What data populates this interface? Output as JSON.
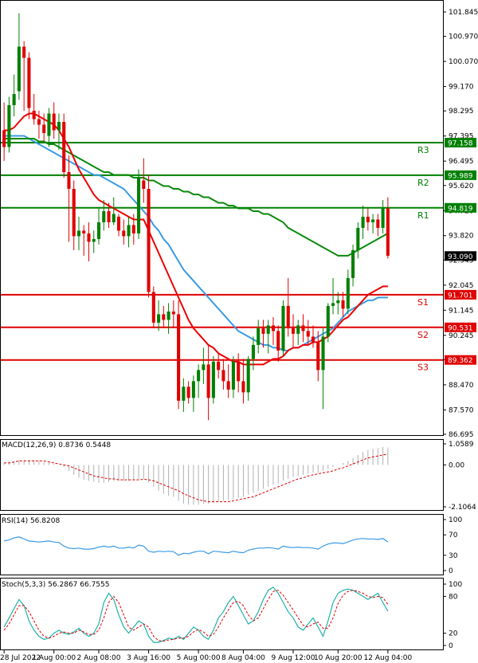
{
  "chart_data": {
    "type": "candlestick",
    "price_panel": {
      "y_ticks": [
        "101.845",
        "100.970",
        "100.070",
        "99.170",
        "98.295",
        "97.395",
        "96.495",
        "95.620",
        "94.720",
        "93.820",
        "92.945",
        "92.045",
        "91.145",
        "90.245",
        "89.370",
        "88.470",
        "87.570",
        "86.695"
      ],
      "ylim": [
        86.695,
        101.845
      ],
      "levels": [
        {
          "label": "R3",
          "value": 97.158,
          "value_text": "97.158",
          "color": "#008000"
        },
        {
          "label": "R2",
          "value": 95.989,
          "value_text": "95.989",
          "color": "#008000"
        },
        {
          "label": "R1",
          "value": 94.819,
          "value_text": "94.819",
          "color": "#008000"
        },
        {
          "label": "S1",
          "value": 91.701,
          "value_text": "91.701",
          "color": "#e00000"
        },
        {
          "label": "S2",
          "value": 90.531,
          "value_text": "90.531",
          "color": "#e00000"
        },
        {
          "label": "S3",
          "value": 89.362,
          "value_text": "89.362",
          "color": "#e00000"
        }
      ],
      "current_price": 93.09,
      "current_price_text": "93.090",
      "bull_color": "#008000",
      "bear_color": "#e00000",
      "candles": [
        [
          97.6,
          98.6,
          96.5,
          97.0
        ],
        [
          97.0,
          98.8,
          96.8,
          98.5
        ],
        [
          98.5,
          99.6,
          98.1,
          98.9
        ],
        [
          99.0,
          101.8,
          98.7,
          100.6
        ],
        [
          100.6,
          100.8,
          98.3,
          100.2
        ],
        [
          100.2,
          100.4,
          98.0,
          98.4
        ],
        [
          98.3,
          98.9,
          97.8,
          98.0
        ],
        [
          98.0,
          98.3,
          97.3,
          97.8
        ],
        [
          97.8,
          98.2,
          97.2,
          97.5
        ],
        [
          97.4,
          98.4,
          97.0,
          98.2
        ],
        [
          98.2,
          98.6,
          97.3,
          97.6
        ],
        [
          97.6,
          98.2,
          96.9,
          97.9
        ],
        [
          97.9,
          98.2,
          95.9,
          96.1
        ],
        [
          96.1,
          96.7,
          93.6,
          95.5
        ],
        [
          95.5,
          95.8,
          93.3,
          93.8
        ],
        [
          93.8,
          94.5,
          93.3,
          94.0
        ],
        [
          94.0,
          94.2,
          93.1,
          93.9
        ],
        [
          93.9,
          94.3,
          92.9,
          93.6
        ],
        [
          93.6,
          94.0,
          93.2,
          93.7
        ],
        [
          93.7,
          94.8,
          93.5,
          94.3
        ],
        [
          94.3,
          95.1,
          94.0,
          94.7
        ],
        [
          94.7,
          95.0,
          94.1,
          94.3
        ],
        [
          94.3,
          95.2,
          94.2,
          94.6
        ],
        [
          94.5,
          94.6,
          93.8,
          94.0
        ],
        [
          94.0,
          94.4,
          93.5,
          93.8
        ],
        [
          93.8,
          94.5,
          93.4,
          94.2
        ],
        [
          94.2,
          94.6,
          93.5,
          93.9
        ],
        [
          93.9,
          96.2,
          93.7,
          95.9
        ],
        [
          95.8,
          96.6,
          95.0,
          95.5
        ],
        [
          95.5,
          96.0,
          91.6,
          91.8
        ],
        [
          91.8,
          92.0,
          90.5,
          90.7
        ],
        [
          90.7,
          91.5,
          90.4,
          91.0
        ],
        [
          91.0,
          91.3,
          90.5,
          90.8
        ],
        [
          90.8,
          91.4,
          90.3,
          91.1
        ],
        [
          91.1,
          91.5,
          90.5,
          91.0
        ],
        [
          91.0,
          91.5,
          87.6,
          87.9
        ],
        [
          87.9,
          88.7,
          87.5,
          88.4
        ],
        [
          88.4,
          88.6,
          87.8,
          88.0
        ],
        [
          88.0,
          88.8,
          87.5,
          88.6
        ],
        [
          88.6,
          89.2,
          88.0,
          89.0
        ],
        [
          89.0,
          89.8,
          88.5,
          89.2
        ],
        [
          89.2,
          89.9,
          87.2,
          88.0
        ],
        [
          88.0,
          89.5,
          87.8,
          89.3
        ],
        [
          89.3,
          89.6,
          88.7,
          89.0
        ],
        [
          89.0,
          89.4,
          88.3,
          88.6
        ],
        [
          88.6,
          89.2,
          88.0,
          88.3
        ],
        [
          88.3,
          89.5,
          88.0,
          89.3
        ],
        [
          89.3,
          89.6,
          88.2,
          88.6
        ],
        [
          88.6,
          89.4,
          87.8,
          88.2
        ],
        [
          88.2,
          89.5,
          87.9,
          89.4
        ],
        [
          89.4,
          90.2,
          89.0,
          89.9
        ],
        [
          89.9,
          90.8,
          89.6,
          90.5
        ],
        [
          90.5,
          90.8,
          89.8,
          90.3
        ],
        [
          90.3,
          90.8,
          89.6,
          90.6
        ],
        [
          90.6,
          90.9,
          89.9,
          90.4
        ],
        [
          90.4,
          90.6,
          89.3,
          89.7
        ],
        [
          89.7,
          91.5,
          89.5,
          91.3
        ],
        [
          91.3,
          92.3,
          90.2,
          90.5
        ],
        [
          90.5,
          91.0,
          89.8,
          90.3
        ],
        [
          90.3,
          90.8,
          89.9,
          90.6
        ],
        [
          90.6,
          91.0,
          90.0,
          90.4
        ],
        [
          90.4,
          90.8,
          89.9,
          90.2
        ],
        [
          90.2,
          90.6,
          89.8,
          90.0
        ],
        [
          90.0,
          90.4,
          88.6,
          89.0
        ],
        [
          89.0,
          90.5,
          87.6,
          90.2
        ],
        [
          90.2,
          91.4,
          90.0,
          91.3
        ],
        [
          91.3,
          92.3,
          91.0,
          91.4
        ],
        [
          91.4,
          91.8,
          91.0,
          91.5
        ],
        [
          91.5,
          91.8,
          90.9,
          91.2
        ],
        [
          91.2,
          92.6,
          91.0,
          92.3
        ],
        [
          92.3,
          93.5,
          92.0,
          93.3
        ],
        [
          93.3,
          94.3,
          93.0,
          94.1
        ],
        [
          94.1,
          94.9,
          93.7,
          94.5
        ],
        [
          94.5,
          94.8,
          94.0,
          94.3
        ],
        [
          94.3,
          94.6,
          93.9,
          94.4
        ],
        [
          94.4,
          94.6,
          93.8,
          94.1
        ],
        [
          94.1,
          95.1,
          93.9,
          94.8
        ],
        [
          94.8,
          95.2,
          93.0,
          93.1
        ]
      ],
      "ma_red": [
        97.6,
        97.6,
        97.7,
        97.9,
        98.1,
        98.2,
        98.2,
        98.1,
        98.0,
        97.9,
        97.8,
        97.6,
        97.3,
        97.0,
        96.6,
        96.2,
        95.9,
        95.6,
        95.3,
        95.1,
        95.0,
        94.9,
        94.8,
        94.7,
        94.6,
        94.5,
        94.4,
        94.4,
        94.4,
        94.0,
        93.6,
        93.2,
        92.8,
        92.4,
        92.0,
        91.6,
        91.2,
        90.8,
        90.5,
        90.3,
        90.1,
        89.9,
        89.8,
        89.6,
        89.5,
        89.4,
        89.3,
        89.3,
        89.2,
        89.2,
        89.2,
        89.2,
        89.2,
        89.3,
        89.4,
        89.4,
        89.5,
        89.7,
        89.8,
        89.8,
        89.9,
        89.9,
        90.0,
        90.0,
        90.1,
        90.2,
        90.4,
        90.6,
        90.8,
        90.9,
        91.1,
        91.3,
        91.5,
        91.7,
        91.8,
        91.9,
        92.0,
        92.0
      ],
      "ma_green": [
        97.3,
        97.3,
        97.3,
        97.3,
        97.3,
        97.3,
        97.3,
        97.2,
        97.2,
        97.1,
        97.1,
        97.0,
        96.9,
        96.8,
        96.7,
        96.6,
        96.5,
        96.4,
        96.3,
        96.2,
        96.1,
        96.1,
        96.0,
        96.0,
        96.0,
        96.0,
        95.9,
        95.9,
        95.9,
        95.8,
        95.8,
        95.7,
        95.6,
        95.6,
        95.5,
        95.5,
        95.4,
        95.4,
        95.3,
        95.3,
        95.2,
        95.2,
        95.1,
        95.0,
        95.0,
        94.9,
        94.9,
        94.8,
        94.8,
        94.8,
        94.7,
        94.7,
        94.6,
        94.6,
        94.5,
        94.4,
        94.3,
        94.1,
        94.0,
        93.9,
        93.8,
        93.7,
        93.6,
        93.5,
        93.4,
        93.3,
        93.2,
        93.1,
        93.1,
        93.1,
        93.2,
        93.3,
        93.4,
        93.5,
        93.6,
        93.7,
        93.8,
        93.9
      ],
      "ma_blue": [
        97.4,
        97.4,
        97.4,
        97.4,
        97.4,
        97.3,
        97.2,
        97.1,
        97.0,
        96.9,
        96.8,
        96.7,
        96.6,
        96.5,
        96.4,
        96.3,
        96.2,
        96.1,
        96.0,
        96.0,
        95.9,
        95.8,
        95.7,
        95.6,
        95.5,
        95.3,
        95.1,
        94.9,
        94.7,
        94.5,
        94.2,
        94.0,
        93.7,
        93.5,
        93.2,
        92.9,
        92.6,
        92.4,
        92.2,
        92.0,
        91.8,
        91.6,
        91.4,
        91.2,
        91.0,
        90.8,
        90.6,
        90.4,
        90.3,
        90.2,
        90.1,
        90.0,
        89.9,
        89.9,
        89.8,
        89.8,
        89.7,
        89.7,
        89.8,
        89.8,
        89.9,
        90.0,
        90.1,
        90.2,
        90.3,
        90.4,
        90.5,
        90.7,
        90.9,
        91.1,
        91.2,
        91.3,
        91.4,
        91.5,
        91.5,
        91.6,
        91.6,
        91.6
      ]
    },
    "macd_panel": {
      "label": "MACD(12,26,9) 0.8736 0.5448",
      "y_ticks": [
        "1.0589",
        "0.00",
        "-2.1064"
      ],
      "ylim": [
        -2.1064,
        1.0589
      ],
      "histogram": [
        0.1,
        0.15,
        0.2,
        0.25,
        0.25,
        0.25,
        0.25,
        0.2,
        0.15,
        0.1,
        0.05,
        0.0,
        -0.1,
        -0.3,
        -0.5,
        -0.65,
        -0.75,
        -0.8,
        -0.85,
        -0.9,
        -0.9,
        -0.85,
        -0.8,
        -0.8,
        -0.8,
        -0.8,
        -0.75,
        -0.7,
        -0.7,
        -0.9,
        -1.1,
        -1.3,
        -1.45,
        -1.55,
        -1.6,
        -1.8,
        -1.95,
        -2.0,
        -2.0,
        -2.0,
        -1.95,
        -1.95,
        -1.9,
        -1.85,
        -1.8,
        -1.75,
        -1.7,
        -1.65,
        -1.6,
        -1.5,
        -1.4,
        -1.3,
        -1.2,
        -1.1,
        -1.0,
        -0.95,
        -0.8,
        -0.7,
        -0.6,
        -0.55,
        -0.5,
        -0.45,
        -0.4,
        -0.4,
        -0.3,
        -0.2,
        -0.1,
        0.0,
        0.1,
        0.2,
        0.35,
        0.5,
        0.65,
        0.75,
        0.8,
        0.85,
        0.9,
        0.87
      ],
      "signal": [
        0.1,
        0.1,
        0.15,
        0.2,
        0.2,
        0.2,
        0.2,
        0.2,
        0.2,
        0.15,
        0.1,
        0.05,
        0.0,
        -0.05,
        -0.15,
        -0.25,
        -0.35,
        -0.45,
        -0.55,
        -0.6,
        -0.65,
        -0.7,
        -0.7,
        -0.75,
        -0.75,
        -0.75,
        -0.75,
        -0.75,
        -0.72,
        -0.75,
        -0.8,
        -0.9,
        -1.0,
        -1.1,
        -1.2,
        -1.3,
        -1.45,
        -1.55,
        -1.65,
        -1.75,
        -1.8,
        -1.85,
        -1.85,
        -1.85,
        -1.85,
        -1.85,
        -1.8,
        -1.75,
        -1.7,
        -1.65,
        -1.6,
        -1.5,
        -1.4,
        -1.3,
        -1.2,
        -1.1,
        -1.0,
        -0.9,
        -0.8,
        -0.7,
        -0.65,
        -0.55,
        -0.5,
        -0.45,
        -0.4,
        -0.35,
        -0.3,
        -0.2,
        -0.15,
        -0.05,
        0.05,
        0.15,
        0.25,
        0.35,
        0.4,
        0.45,
        0.5,
        0.55
      ]
    },
    "rsi_panel": {
      "label": "RSI(14) 56.8208",
      "y_ticks": [
        "100",
        "70",
        "30",
        "0"
      ],
      "ylim": [
        0,
        100
      ],
      "values": [
        58,
        60,
        64,
        66,
        62,
        58,
        57,
        56,
        57,
        58,
        56,
        55,
        48,
        44,
        43,
        44,
        42,
        42,
        43,
        46,
        48,
        46,
        48,
        44,
        44,
        46,
        44,
        50,
        48,
        38,
        36,
        38,
        37,
        38,
        37,
        30,
        34,
        33,
        36,
        38,
        38,
        33,
        38,
        37,
        36,
        35,
        38,
        36,
        35,
        40,
        42,
        44,
        44,
        45,
        44,
        42,
        48,
        46,
        45,
        46,
        45,
        45,
        44,
        42,
        48,
        52,
        54,
        54,
        53,
        56,
        60,
        62,
        63,
        62,
        62,
        61,
        63,
        56
      ]
    },
    "stoch_panel": {
      "label": "Stoch(5,3,3) 56.2867 66.7555",
      "y_ticks": [
        "100",
        "80",
        "20",
        "0"
      ],
      "ylim": [
        0,
        100
      ],
      "k": [
        30,
        45,
        60,
        75,
        65,
        40,
        25,
        15,
        10,
        12,
        20,
        25,
        20,
        18,
        22,
        28,
        20,
        15,
        20,
        35,
        70,
        85,
        75,
        50,
        30,
        20,
        30,
        40,
        35,
        15,
        5,
        5,
        8,
        12,
        10,
        15,
        10,
        20,
        30,
        25,
        15,
        10,
        25,
        45,
        55,
        70,
        80,
        65,
        50,
        35,
        40,
        55,
        75,
        90,
        95,
        85,
        70,
        55,
        45,
        30,
        25,
        35,
        45,
        30,
        15,
        40,
        70,
        85,
        90,
        92,
        90,
        85,
        80,
        75,
        80,
        85,
        70,
        56
      ],
      "d": [
        25,
        35,
        50,
        65,
        65,
        55,
        40,
        25,
        15,
        12,
        15,
        20,
        22,
        20,
        20,
        25,
        22,
        18,
        18,
        25,
        45,
        70,
        80,
        70,
        50,
        30,
        25,
        30,
        35,
        30,
        15,
        8,
        7,
        9,
        10,
        12,
        12,
        15,
        22,
        26,
        22,
        15,
        18,
        30,
        45,
        58,
        70,
        72,
        65,
        50,
        40,
        45,
        60,
        75,
        88,
        90,
        82,
        70,
        58,
        45,
        33,
        30,
        35,
        38,
        28,
        28,
        45,
        68,
        82,
        88,
        90,
        88,
        85,
        80,
        78,
        80,
        78,
        67
      ]
    },
    "x_labels": [
      "28 Jul 2022",
      "1 Aug 00:00",
      "2 Aug 08:00",
      "3 Aug 16:00",
      "5 Aug 00:00",
      "8 Aug 04:00",
      "9 Aug 12:00",
      "10 Aug 20:00",
      "12 Aug 04:00"
    ],
    "colors": {
      "ma_red": "#ee0000",
      "ma_green": "#0a8a0a",
      "ma_blue": "#3b9ae6",
      "macd_signal": "#e00000",
      "hist": "#b0b0b0",
      "rsi": "#3b9ae6",
      "stoch_k": "#20b2aa",
      "stoch_d": "#e00000"
    }
  }
}
